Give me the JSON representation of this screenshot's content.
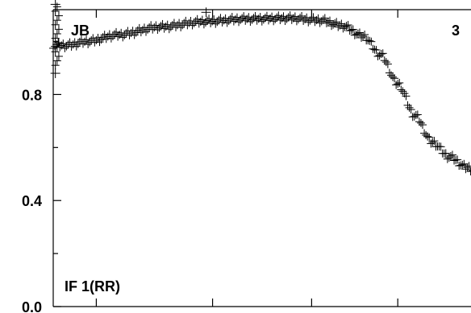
{
  "chart_data": {
    "type": "scatter",
    "marker": "plus",
    "corner_label_left": "JB",
    "corner_label_right": "3",
    "series_label": "IF 1(RR)",
    "ylim": [
      0.0,
      1.12
    ],
    "y_tick_labels": [
      "0.8",
      "0.4",
      "0.0"
    ],
    "y_ticks_labeled": [
      0.8,
      0.4,
      0.0
    ],
    "y_ticks_minor": [
      1.0,
      0.6,
      0.2
    ],
    "x_tick_fractions": [
      0.1,
      0.37,
      0.6,
      0.8
    ],
    "x_range": [
      0,
      1
    ],
    "x_extent_visible": [
      0.0,
      1.0
    ],
    "curve_points": [
      [
        0.0,
        0.985
      ],
      [
        0.03,
        0.985
      ],
      [
        0.08,
        1.0
      ],
      [
        0.15,
        1.025
      ],
      [
        0.25,
        1.055
      ],
      [
        0.35,
        1.075
      ],
      [
        0.45,
        1.085
      ],
      [
        0.55,
        1.088
      ],
      [
        0.62,
        1.08
      ],
      [
        0.67,
        1.06
      ],
      [
        0.72,
        1.02
      ],
      [
        0.76,
        0.95
      ],
      [
        0.8,
        0.84
      ],
      [
        0.84,
        0.72
      ],
      [
        0.88,
        0.62
      ],
      [
        0.92,
        0.565
      ],
      [
        0.96,
        0.525
      ],
      [
        1.0,
        0.49
      ]
    ],
    "outlier_points": [
      [
        0.0,
        1.14
      ],
      [
        0.0,
        0.88
      ],
      [
        0.35,
        1.11
      ]
    ],
    "colors": {
      "marker": "#000000",
      "axes": "#000000",
      "background": "#ffffff"
    }
  }
}
